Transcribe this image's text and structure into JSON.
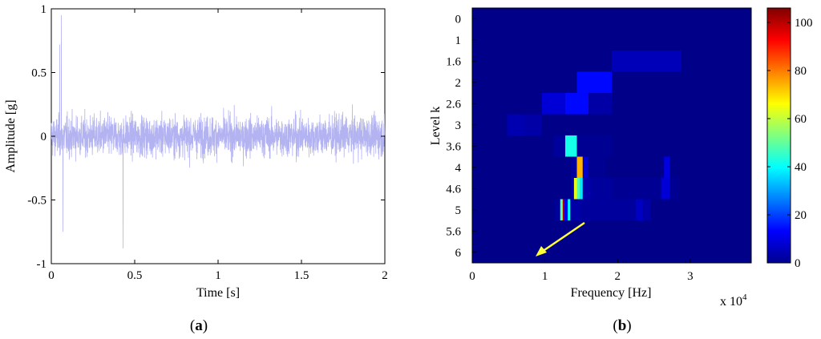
{
  "chart_data": [
    {
      "type": "line",
      "panel_label": "(a)",
      "panel_letter": "a",
      "xlabel": "Time [s]",
      "ylabel": "Amplitude [g]",
      "xlim": [
        0,
        2
      ],
      "ylim": [
        -1,
        1
      ],
      "xticks": [
        {
          "value": 0,
          "label": "0"
        },
        {
          "value": 0.5,
          "label": "0.5"
        },
        {
          "value": 1,
          "label": "1"
        },
        {
          "value": 1.5,
          "label": "1.5"
        },
        {
          "value": 2,
          "label": "2"
        }
      ],
      "yticks": [
        {
          "value": -1,
          "label": "-1"
        },
        {
          "value": -0.5,
          "label": "-0.5"
        },
        {
          "value": 0,
          "label": "0"
        },
        {
          "value": 0.5,
          "label": "0.5"
        },
        {
          "value": 1,
          "label": "1"
        }
      ],
      "series": [
        {
          "color": "#b3b3f2",
          "t_range": [
            0,
            2
          ],
          "sample_count": 2400,
          "typical_amplitude": 0.3,
          "peaks": [
            {
              "t": 0.06,
              "y": 0.95
            },
            {
              "t": 0.07,
              "y": -0.75
            },
            {
              "t": 0.43,
              "y": -0.88
            },
            {
              "t": 0.05,
              "y": 0.72
            }
          ]
        }
      ]
    },
    {
      "type": "heatmap",
      "panel_label": "(b)",
      "panel_letter": "b",
      "xlabel": "Frequency [Hz]",
      "ylabel": "Level k",
      "x_multiplier_label": "x 10",
      "x_multiplier_exponent": "4",
      "xlim": [
        0,
        3.84
      ],
      "xticks": [
        {
          "value": 0,
          "label": "0"
        },
        {
          "value": 1,
          "label": "1"
        },
        {
          "value": 2,
          "label": "2"
        },
        {
          "value": 3,
          "label": "3"
        }
      ],
      "levels": [
        "0",
        "1",
        "1.6",
        "2",
        "2.6",
        "3",
        "3.6",
        "4",
        "4.6",
        "5",
        "5.6",
        "6"
      ],
      "colorbar": {
        "min": 0,
        "max": 106,
        "ticks": [
          {
            "value": 0,
            "label": "0"
          },
          {
            "value": 20,
            "label": "20"
          },
          {
            "value": 40,
            "label": "40"
          },
          {
            "value": 60,
            "label": "60"
          },
          {
            "value": 80,
            "label": "80"
          },
          {
            "value": 100,
            "label": "100"
          }
        ]
      },
      "rows": [
        {
          "level": "0",
          "cells": [
            1
          ]
        },
        {
          "level": "1",
          "cells": [
            1,
            1
          ]
        },
        {
          "level": "1.6",
          "cells": [
            1,
            1,
            6,
            1
          ]
        },
        {
          "level": "2",
          "cells": [
            1,
            1,
            1,
            14,
            1,
            1,
            1,
            1
          ]
        },
        {
          "level": "2.6",
          "cells": [
            1,
            1,
            1,
            9,
            14,
            4,
            1,
            1,
            1,
            1,
            1,
            1
          ]
        },
        {
          "level": "3",
          "cells": [
            1,
            1,
            5,
            4,
            1,
            1,
            1,
            1,
            1,
            1,
            1,
            1,
            1,
            1,
            1,
            1
          ]
        },
        {
          "level": "3.6",
          "cells": [
            1,
            1,
            1,
            1,
            1,
            1,
            1,
            3,
            42,
            2,
            2,
            2,
            1,
            1,
            1,
            1,
            1,
            1,
            1,
            1,
            1,
            1,
            1,
            1
          ]
        },
        {
          "level": "4",
          "cells": [
            1,
            1,
            1,
            1,
            1,
            1,
            1,
            1,
            1,
            1,
            1,
            1,
            1,
            1,
            1,
            1,
            1,
            3,
            74,
            8,
            2,
            2,
            2,
            1,
            1,
            1,
            1,
            1,
            1,
            1,
            1,
            1,
            1,
            10,
            1,
            1,
            1,
            1,
            1,
            1,
            1,
            1,
            1,
            1,
            1,
            1,
            1,
            1
          ]
        },
        {
          "level": "4.6",
          "cells": [
            1,
            1,
            1,
            1,
            1,
            1,
            1,
            1,
            1,
            1,
            1,
            1,
            1,
            1,
            1,
            1,
            1,
            1,
            1,
            1,
            1,
            1,
            1,
            1,
            1,
            1,
            1,
            1,
            1,
            1,
            1,
            1,
            1,
            1,
            4,
            64,
            48,
            38,
            4,
            4,
            4,
            3,
            3,
            3,
            3,
            3,
            3,
            3,
            2,
            2,
            2,
            2,
            2,
            2,
            2,
            2,
            2,
            2,
            2,
            2,
            2,
            2,
            2,
            2,
            2,
            9,
            9,
            9,
            2,
            2,
            2,
            1,
            1,
            1,
            1,
            1,
            1,
            1,
            1,
            1,
            1,
            1,
            1,
            1,
            1,
            1,
            1,
            1,
            1,
            1,
            1,
            1,
            1,
            1,
            1,
            1
          ]
        },
        {
          "level": "5",
          "cells": [
            1,
            1,
            1,
            1,
            1,
            1,
            1,
            1,
            1,
            1,
            1,
            1,
            1,
            1,
            1,
            1,
            1,
            1,
            1,
            1,
            1,
            1,
            1,
            1,
            1,
            1,
            1,
            1,
            1,
            1,
            1,
            1,
            1,
            1,
            1,
            1,
            1,
            1,
            1,
            1,
            1,
            1,
            1,
            1,
            1,
            1,
            1,
            1,
            1,
            1,
            1,
            1,
            1,
            1,
            1,
            1,
            1,
            1,
            1,
            1,
            1,
            1,
            1,
            1,
            1,
            1,
            3,
            3,
            3,
            3,
            50,
            50,
            100,
            12,
            12,
            12,
            40,
            40,
            4,
            4,
            4,
            4,
            4,
            4,
            4,
            4,
            3,
            3,
            3,
            3,
            3,
            3,
            3,
            3,
            3,
            3,
            3,
            3,
            3,
            3,
            3,
            3,
            3,
            3,
            3,
            3,
            3,
            3,
            3,
            3,
            3,
            3,
            3,
            3,
            3,
            3,
            3,
            3,
            3,
            3,
            3,
            3,
            3,
            3,
            3,
            3,
            3,
            3,
            3,
            3,
            7,
            7,
            7,
            7,
            7,
            7,
            4,
            4,
            4,
            4,
            4,
            4,
            1,
            1,
            1,
            1,
            1,
            1,
            1,
            1,
            1,
            1,
            1,
            1,
            1,
            1,
            1,
            1,
            1,
            1,
            1,
            1,
            1,
            1,
            1,
            1,
            1,
            1,
            1,
            1,
            1,
            1,
            1,
            1,
            1,
            1,
            1,
            1,
            1,
            1,
            1,
            1,
            1,
            1,
            1,
            1,
            1,
            1,
            1,
            1,
            1,
            1,
            1,
            1,
            1,
            1,
            1,
            1,
            1,
            1,
            1,
            1,
            1,
            1,
            1,
            1,
            1,
            1,
            1,
            1,
            1,
            1,
            1,
            1,
            1,
            1,
            1,
            1,
            1,
            1,
            1,
            1
          ]
        },
        {
          "level": "5.6",
          "cells": [
            1,
            1,
            1,
            1,
            1,
            1,
            1,
            1,
            1,
            1,
            1,
            1,
            1,
            1,
            1,
            1,
            1,
            1,
            1,
            1,
            1,
            1,
            1,
            1,
            1,
            1,
            1,
            1,
            1,
            1,
            1,
            1,
            1,
            1,
            1,
            1,
            1,
            1,
            1,
            1,
            1,
            1,
            1,
            1,
            1,
            1,
            1,
            1,
            1,
            1,
            1,
            1,
            1,
            1,
            1,
            1,
            1,
            1,
            1,
            1,
            1,
            1,
            1,
            1,
            1,
            1,
            1,
            1,
            1,
            1,
            1,
            1,
            1,
            1,
            1,
            1,
            1,
            1,
            1,
            1,
            1,
            1,
            1,
            1,
            1,
            1,
            1,
            1,
            1,
            1,
            1,
            1,
            1,
            1,
            1,
            1,
            1,
            1,
            1,
            1,
            1,
            1,
            1,
            1,
            1,
            1,
            1,
            1,
            1,
            1,
            1,
            1,
            1,
            1,
            1,
            1,
            1,
            1,
            1,
            1,
            1,
            1,
            1,
            1,
            1,
            1,
            1,
            1,
            1,
            1,
            1,
            1,
            1,
            1,
            1,
            1,
            1,
            1,
            1,
            1,
            1,
            1,
            1,
            1,
            1,
            1,
            1,
            1,
            1,
            1,
            1,
            1,
            1,
            1,
            1,
            1,
            1,
            1,
            1,
            1,
            1,
            1,
            1,
            1,
            1,
            1,
            1,
            1,
            1,
            1,
            1,
            1,
            1,
            1,
            1,
            1,
            1,
            1,
            1,
            1,
            1,
            1,
            1,
            1,
            1,
            1,
            1,
            1,
            1,
            1,
            1,
            1,
            1,
            1,
            1,
            1,
            1,
            1,
            1,
            1,
            1,
            1,
            1,
            1,
            1,
            1,
            1,
            1,
            1,
            1,
            1,
            1,
            1,
            1,
            1,
            1,
            1,
            1,
            1,
            1,
            1,
            1,
            1,
            1,
            1,
            1,
            1,
            1,
            1,
            1,
            1,
            1,
            1,
            1,
            1,
            1,
            1,
            1,
            1,
            1,
            1,
            1,
            1,
            1,
            1,
            1,
            1,
            1,
            1,
            1,
            1,
            1,
            1,
            1,
            1,
            1
          ]
        },
        {
          "level": "6",
          "cells": [
            1
          ]
        }
      ],
      "annotation": {
        "type": "arrow",
        "color": "#ffff33",
        "from": [
          1.5,
          "5.6"
        ],
        "to": [
          0.85,
          "6"
        ]
      }
    }
  ]
}
